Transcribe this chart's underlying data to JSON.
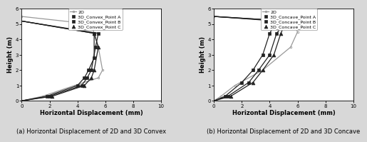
{
  "convex": {
    "legend_labels": [
      "2D",
      "3D_Convex_Point A",
      "3D_Convex_Point B",
      "3D_Convex_Point C"
    ],
    "line_2D_x": [
      0,
      1.5,
      3.8,
      5.5,
      5.8,
      5.5,
      5.0,
      0
    ],
    "line_2D_y": [
      0,
      0.3,
      1.0,
      1.5,
      2.0,
      3.5,
      5.0,
      5.5
    ],
    "point_A_x": [
      0,
      1.8,
      4.0,
      4.5,
      4.8,
      5.2,
      5.2,
      0
    ],
    "point_A_y": [
      0,
      0.3,
      1.0,
      1.5,
      2.0,
      2.8,
      4.4,
      5.2
    ],
    "point_B_x": [
      0,
      2.0,
      4.3,
      4.7,
      5.0,
      5.3,
      5.5,
      0
    ],
    "point_B_y": [
      0,
      0.3,
      1.0,
      1.5,
      2.0,
      3.5,
      4.4,
      5.2
    ],
    "point_C_x": [
      0,
      2.2,
      4.5,
      5.0,
      5.2,
      5.5,
      5.2,
      0
    ],
    "point_C_y": [
      0,
      0.3,
      1.0,
      1.5,
      2.0,
      3.5,
      4.4,
      5.2
    ],
    "marker_A_x": [
      1.8,
      4.0,
      4.5,
      4.8,
      5.2,
      5.2
    ],
    "marker_A_y": [
      0.3,
      1.0,
      1.5,
      2.0,
      2.8,
      4.4
    ],
    "marker_B_x": [
      2.0,
      4.3,
      4.7,
      5.0,
      5.3,
      5.5
    ],
    "marker_B_y": [
      0.3,
      1.0,
      1.5,
      2.0,
      3.5,
      4.4
    ],
    "marker_C_x": [
      2.2,
      4.5,
      5.0,
      5.2,
      5.5,
      5.2
    ],
    "marker_C_y": [
      0.3,
      1.0,
      1.5,
      2.0,
      3.5,
      4.4
    ]
  },
  "concave": {
    "legend_labels": [
      "2D",
      "3D_Concave_Point A",
      "3D_Concave_Point B",
      "3D_Concave_Point C"
    ],
    "line_2D_x": [
      0,
      0.5,
      1.5,
      3.5,
      5.5,
      6.0,
      5.5,
      0
    ],
    "line_2D_y": [
      0,
      0.3,
      1.0,
      2.0,
      3.5,
      4.5,
      5.2,
      5.5
    ],
    "point_A_x": [
      0,
      0.8,
      2.0,
      2.8,
      3.5,
      4.0,
      4.5,
      0
    ],
    "point_A_y": [
      0,
      0.3,
      1.2,
      2.0,
      3.0,
      4.4,
      5.2,
      5.5
    ],
    "point_B_x": [
      0,
      1.0,
      2.5,
      3.2,
      4.0,
      4.5,
      5.2,
      0
    ],
    "point_B_y": [
      0,
      0.3,
      1.2,
      2.0,
      3.0,
      4.4,
      5.2,
      5.5
    ],
    "point_C_x": [
      0,
      1.2,
      2.8,
      3.5,
      4.3,
      4.8,
      5.2,
      0
    ],
    "point_C_y": [
      0,
      0.3,
      1.2,
      2.0,
      3.0,
      4.4,
      5.2,
      5.5
    ],
    "marker_A_x": [
      0.8,
      2.0,
      2.8,
      3.5,
      4.0,
      4.5
    ],
    "marker_A_y": [
      0.3,
      1.2,
      2.0,
      3.0,
      4.4,
      5.2
    ],
    "marker_B_x": [
      1.0,
      2.5,
      3.2,
      4.0,
      4.5,
      5.2
    ],
    "marker_B_y": [
      0.3,
      1.2,
      2.0,
      3.0,
      4.4,
      5.2
    ],
    "marker_C_x": [
      1.2,
      2.8,
      3.5,
      4.3,
      4.8,
      5.2
    ],
    "marker_C_y": [
      0.3,
      1.2,
      2.0,
      3.0,
      4.4,
      5.2
    ]
  },
  "xlabel": "Horizontal Displacement (mm)",
  "ylabel": "Height (m)",
  "xlim": [
    0,
    10
  ],
  "ylim": [
    0,
    6
  ],
  "xticks": [
    0,
    2,
    4,
    6,
    8,
    10
  ],
  "yticks": [
    0,
    1,
    2,
    3,
    4,
    5,
    6
  ],
  "caption_a": "(a) Horizontal Displacement of 2D and 3D Convex",
  "caption_b": "(b) Horizontal Displacement of 2D and 3D Concave",
  "bg_color": "#d8d8d8",
  "color_2D": "#999999",
  "color_3D": "#222222",
  "lw": 0.9,
  "ms_sq": 3.5,
  "ms_tri": 3.5,
  "fontsize_label": 6,
  "fontsize_tick": 5,
  "fontsize_legend": 4.5,
  "fontsize_caption": 6
}
